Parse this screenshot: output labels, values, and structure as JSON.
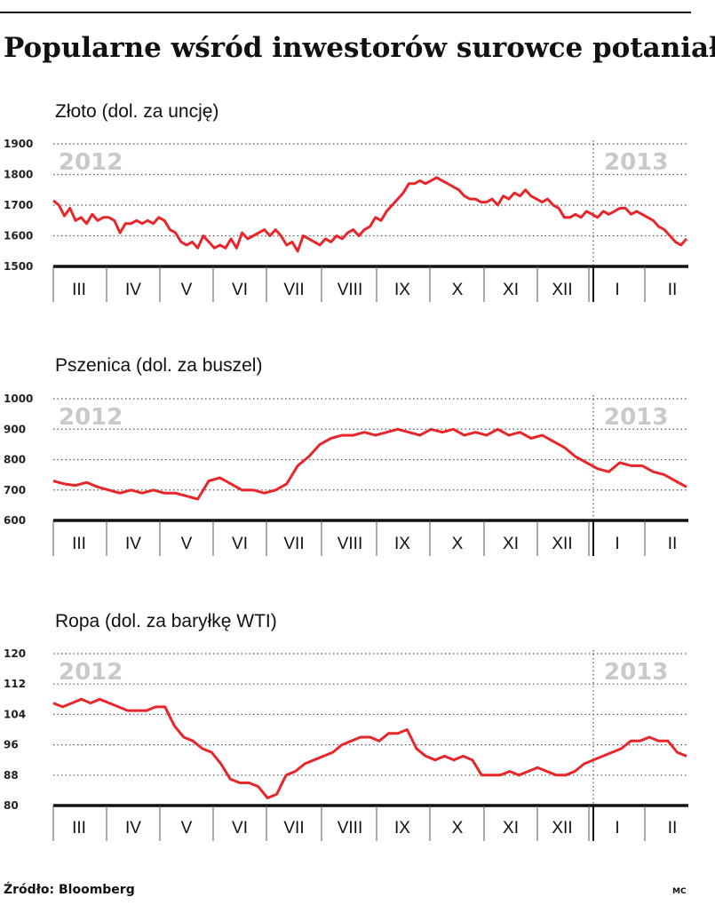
{
  "title": "Popularne wśród inwestorów surowce potaniały",
  "source": "Źródło: Bloomberg",
  "credit": "MC",
  "colors": {
    "line": "#e8262a",
    "grid": "#555555",
    "axis": "#111111",
    "year_label": "#c9c9c9"
  },
  "chart_data": [
    {
      "type": "line",
      "title": "Złoto (dol. za uncję)",
      "categories": [
        "III",
        "IV",
        "V",
        "VI",
        "VII",
        "VIII",
        "IX",
        "X",
        "XI",
        "XII",
        "I",
        "II"
      ],
      "year_labels": [
        "2012",
        "2013"
      ],
      "ylim": [
        1500,
        1900
      ],
      "yticks": [
        "1900",
        "1800",
        "1700",
        "1600",
        "1500"
      ],
      "ytick_values": [
        1900,
        1800,
        1700,
        1600,
        1500
      ],
      "grid": true,
      "year_divider_x": 10,
      "series": [
        {
          "values": [
            [
              0.0,
              1715
            ],
            [
              0.15,
              1700
            ],
            [
              0.3,
              1665
            ],
            [
              0.45,
              1690
            ],
            [
              0.6,
              1650
            ],
            [
              0.75,
              1660
            ],
            [
              0.9,
              1640
            ],
            [
              1.05,
              1670
            ],
            [
              1.2,
              1650
            ],
            [
              1.35,
              1660
            ],
            [
              1.5,
              1660
            ],
            [
              1.65,
              1650
            ],
            [
              1.8,
              1610
            ],
            [
              1.95,
              1640
            ],
            [
              2.1,
              1640
            ],
            [
              2.25,
              1650
            ],
            [
              2.4,
              1640
            ],
            [
              2.55,
              1650
            ],
            [
              2.7,
              1640
            ],
            [
              2.85,
              1660
            ],
            [
              3.0,
              1650
            ],
            [
              3.15,
              1620
            ],
            [
              3.3,
              1610
            ],
            [
              3.45,
              1580
            ],
            [
              3.6,
              1570
            ],
            [
              3.75,
              1580
            ],
            [
              3.9,
              1560
            ],
            [
              4.05,
              1600
            ],
            [
              4.2,
              1580
            ],
            [
              4.35,
              1560
            ],
            [
              4.5,
              1570
            ],
            [
              4.65,
              1560
            ],
            [
              4.8,
              1590
            ],
            [
              4.95,
              1560
            ],
            [
              5.1,
              1610
            ],
            [
              5.25,
              1590
            ],
            [
              5.4,
              1600
            ],
            [
              5.55,
              1610
            ],
            [
              5.7,
              1620
            ],
            [
              5.85,
              1600
            ],
            [
              6.0,
              1620
            ],
            [
              6.15,
              1600
            ],
            [
              6.3,
              1570
            ],
            [
              6.45,
              1580
            ],
            [
              6.6,
              1550
            ],
            [
              6.75,
              1600
            ],
            [
              6.9,
              1590
            ],
            [
              7.05,
              1580
            ],
            [
              7.2,
              1570
            ],
            [
              7.35,
              1590
            ],
            [
              7.5,
              1580
            ],
            [
              7.65,
              1600
            ],
            [
              7.8,
              1590
            ],
            [
              7.95,
              1610
            ],
            [
              8.1,
              1620
            ],
            [
              8.25,
              1600
            ],
            [
              8.4,
              1620
            ],
            [
              8.55,
              1630
            ],
            [
              8.7,
              1660
            ],
            [
              8.85,
              1650
            ],
            [
              9.0,
              1680
            ],
            [
              9.15,
              1700
            ],
            [
              9.3,
              1720
            ],
            [
              9.45,
              1740
            ],
            [
              9.6,
              1770
            ],
            [
              9.75,
              1770
            ],
            [
              9.9,
              1780
            ],
            [
              10.05,
              1770
            ],
            [
              10.2,
              1780
            ],
            [
              10.35,
              1790
            ],
            [
              10.5,
              1780
            ],
            [
              10.65,
              1770
            ],
            [
              10.8,
              1760
            ],
            [
              10.95,
              1750
            ],
            [
              11.1,
              1730
            ],
            [
              11.25,
              1720
            ],
            [
              11.4,
              1720
            ],
            [
              11.55,
              1710
            ],
            [
              11.7,
              1710
            ],
            [
              11.85,
              1720
            ],
            [
              12.0,
              1700
            ],
            [
              12.15,
              1730
            ],
            [
              12.3,
              1720
            ],
            [
              12.45,
              1740
            ],
            [
              12.6,
              1730
            ],
            [
              12.75,
              1750
            ],
            [
              12.9,
              1730
            ],
            [
              13.05,
              1720
            ],
            [
              13.2,
              1710
            ],
            [
              13.35,
              1720
            ],
            [
              13.5,
              1700
            ],
            [
              13.65,
              1690
            ],
            [
              13.8,
              1660
            ],
            [
              13.95,
              1660
            ],
            [
              14.1,
              1670
            ],
            [
              14.25,
              1660
            ],
            [
              14.4,
              1680
            ],
            [
              14.55,
              1670
            ],
            [
              14.7,
              1660
            ],
            [
              14.85,
              1680
            ],
            [
              15.0,
              1670
            ],
            [
              15.15,
              1680
            ],
            [
              15.3,
              1690
            ],
            [
              15.45,
              1690
            ],
            [
              15.6,
              1670
            ],
            [
              15.75,
              1680
            ],
            [
              15.9,
              1670
            ],
            [
              16.05,
              1660
            ],
            [
              16.2,
              1650
            ],
            [
              16.35,
              1630
            ],
            [
              16.5,
              1620
            ],
            [
              16.65,
              1600
            ],
            [
              16.8,
              1580
            ],
            [
              16.95,
              1570
            ],
            [
              17.1,
              1590
            ]
          ]
        }
      ]
    },
    {
      "type": "line",
      "title": "Pszenica (dol. za buszel)",
      "categories": [
        "III",
        "IV",
        "V",
        "VI",
        "VII",
        "VIII",
        "IX",
        "X",
        "XI",
        "XII",
        "I",
        "II"
      ],
      "year_labels": [
        "2012",
        "2013"
      ],
      "ylim": [
        600,
        1000
      ],
      "yticks": [
        "1000",
        "900",
        "800",
        "700",
        "600"
      ],
      "ytick_values": [
        1000,
        900,
        800,
        700,
        600
      ],
      "grid": true,
      "year_divider_x": 10,
      "series": [
        {
          "values": [
            [
              0.0,
              730
            ],
            [
              0.3,
              720
            ],
            [
              0.6,
              715
            ],
            [
              0.9,
              725
            ],
            [
              1.2,
              710
            ],
            [
              1.5,
              700
            ],
            [
              1.8,
              690
            ],
            [
              2.1,
              700
            ],
            [
              2.4,
              690
            ],
            [
              2.7,
              700
            ],
            [
              3.0,
              690
            ],
            [
              3.3,
              690
            ],
            [
              3.6,
              680
            ],
            [
              3.9,
              670
            ],
            [
              4.2,
              730
            ],
            [
              4.5,
              740
            ],
            [
              4.8,
              720
            ],
            [
              5.1,
              700
            ],
            [
              5.4,
              700
            ],
            [
              5.7,
              690
            ],
            [
              6.0,
              700
            ],
            [
              6.3,
              720
            ],
            [
              6.6,
              780
            ],
            [
              6.9,
              810
            ],
            [
              7.2,
              850
            ],
            [
              7.5,
              870
            ],
            [
              7.8,
              880
            ],
            [
              8.1,
              880
            ],
            [
              8.4,
              890
            ],
            [
              8.7,
              880
            ],
            [
              9.0,
              890
            ],
            [
              9.3,
              900
            ],
            [
              9.6,
              890
            ],
            [
              9.9,
              880
            ],
            [
              10.2,
              900
            ],
            [
              10.5,
              890
            ],
            [
              10.8,
              900
            ],
            [
              11.1,
              880
            ],
            [
              11.4,
              890
            ],
            [
              11.7,
              880
            ],
            [
              12.0,
              900
            ],
            [
              12.3,
              880
            ],
            [
              12.6,
              890
            ],
            [
              12.9,
              870
            ],
            [
              13.2,
              880
            ],
            [
              13.5,
              860
            ],
            [
              13.8,
              840
            ],
            [
              14.1,
              810
            ],
            [
              14.4,
              790
            ],
            [
              14.7,
              770
            ],
            [
              15.0,
              760
            ],
            [
              15.3,
              790
            ],
            [
              15.6,
              780
            ],
            [
              15.9,
              780
            ],
            [
              16.2,
              760
            ],
            [
              16.5,
              750
            ],
            [
              16.8,
              730
            ],
            [
              17.1,
              710
            ]
          ]
        }
      ]
    },
    {
      "type": "line",
      "title": "Ropa (dol. za baryłkę WTI)",
      "categories": [
        "III",
        "IV",
        "V",
        "VI",
        "VII",
        "VIII",
        "IX",
        "X",
        "XI",
        "XII",
        "I",
        "II"
      ],
      "year_labels": [
        "2012",
        "2013"
      ],
      "ylim": [
        80,
        120
      ],
      "yticks": [
        "120",
        "112",
        "104",
        "96",
        "88",
        "80"
      ],
      "ytick_values": [
        120,
        112,
        104,
        96,
        88,
        80
      ],
      "grid": true,
      "year_divider_x": 10,
      "series": [
        {
          "values": [
            [
              0.0,
              107
            ],
            [
              0.3,
              106
            ],
            [
              0.6,
              107
            ],
            [
              0.9,
              108
            ],
            [
              1.2,
              107
            ],
            [
              1.5,
              108
            ],
            [
              1.8,
              107
            ],
            [
              2.1,
              106
            ],
            [
              2.4,
              105
            ],
            [
              2.7,
              105
            ],
            [
              3.0,
              105
            ],
            [
              3.3,
              106
            ],
            [
              3.6,
              106
            ],
            [
              3.9,
              101
            ],
            [
              4.2,
              98
            ],
            [
              4.5,
              97
            ],
            [
              4.8,
              95
            ],
            [
              5.1,
              94
            ],
            [
              5.4,
              91
            ],
            [
              5.7,
              87
            ],
            [
              6.0,
              86
            ],
            [
              6.3,
              86
            ],
            [
              6.6,
              85
            ],
            [
              6.9,
              82
            ],
            [
              7.2,
              83
            ],
            [
              7.5,
              88
            ],
            [
              7.8,
              89
            ],
            [
              8.1,
              91
            ],
            [
              8.4,
              92
            ],
            [
              8.7,
              93
            ],
            [
              9.0,
              94
            ],
            [
              9.3,
              96
            ],
            [
              9.6,
              97
            ],
            [
              9.9,
              98
            ],
            [
              10.2,
              98
            ],
            [
              10.5,
              97
            ],
            [
              10.8,
              99
            ],
            [
              11.1,
              99
            ],
            [
              11.4,
              100
            ],
            [
              11.7,
              95
            ],
            [
              12.0,
              93
            ],
            [
              12.3,
              92
            ],
            [
              12.6,
              93
            ],
            [
              12.9,
              92
            ],
            [
              13.2,
              93
            ],
            [
              13.5,
              92
            ],
            [
              13.8,
              88
            ],
            [
              14.1,
              88
            ],
            [
              14.4,
              88
            ],
            [
              14.7,
              89
            ],
            [
              15.0,
              88
            ],
            [
              15.3,
              89
            ],
            [
              15.6,
              90
            ],
            [
              15.9,
              89
            ],
            [
              16.2,
              88
            ],
            [
              16.5,
              88
            ],
            [
              16.8,
              89
            ],
            [
              17.1,
              91
            ],
            [
              17.4,
              92
            ],
            [
              17.7,
              93
            ],
            [
              18.0,
              94
            ],
            [
              18.3,
              95
            ],
            [
              18.6,
              97
            ],
            [
              18.9,
              97
            ],
            [
              19.2,
              98
            ],
            [
              19.5,
              97
            ],
            [
              19.8,
              97
            ],
            [
              20.1,
              94
            ],
            [
              20.4,
              93
            ]
          ]
        }
      ]
    }
  ]
}
